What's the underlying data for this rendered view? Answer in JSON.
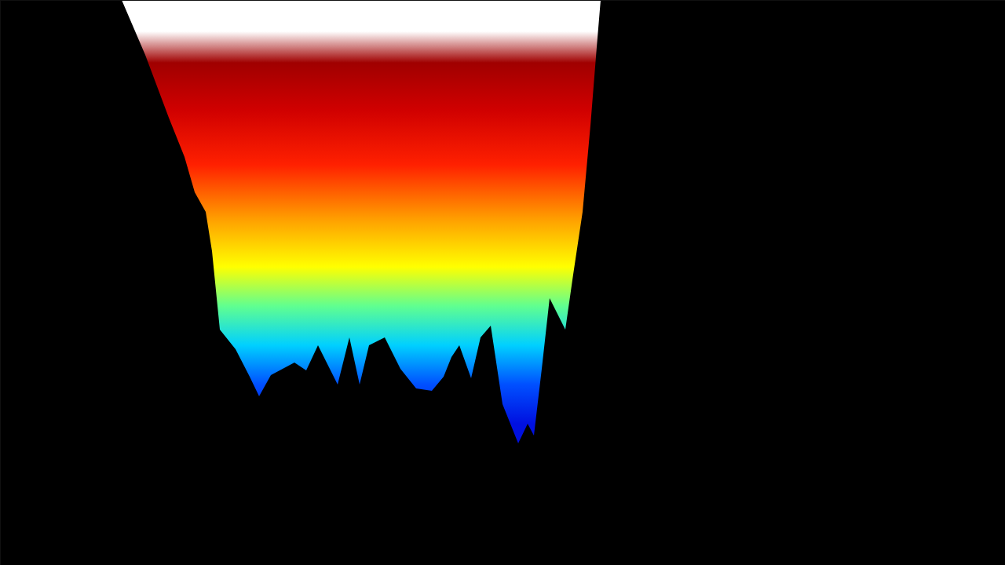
{
  "chart_data": {
    "type": "surface",
    "x": [
      155,
      185,
      215,
      235,
      248,
      262,
      270,
      280,
      300,
      318,
      330,
      345,
      360,
      375,
      390,
      405,
      430,
      445,
      458,
      470,
      490,
      510,
      530,
      550,
      565,
      575,
      585,
      600,
      612,
      625,
      640,
      660,
      672,
      680,
      690,
      700,
      710,
      720,
      730,
      742,
      752,
      760,
      765
    ],
    "values": [
      720,
      650,
      570,
      520,
      475,
      450,
      400,
      300,
      275,
      240,
      215,
      242,
      250,
      258,
      248,
      280,
      230,
      290,
      230,
      280,
      290,
      250,
      225,
      222,
      240,
      265,
      280,
      238,
      290,
      305,
      205,
      155,
      180,
      165,
      250,
      340,
      320,
      300,
      370,
      450,
      560,
      660,
      720
    ],
    "xlim": [
      0,
      1280
    ],
    "ylim": [
      0,
      720
    ],
    "tick_labels": false,
    "grid": false,
    "color_stops": {
      "values": [
        180,
        230,
        280,
        330,
        380,
        440,
        510,
        580,
        640,
        680
      ],
      "colors": [
        "#0010e0",
        "#0050ff",
        "#00d0ff",
        "#60ff90",
        "#ffff00",
        "#ffa000",
        "#ff2000",
        "#d00000",
        "#a00000",
        "#ffffff"
      ]
    }
  }
}
